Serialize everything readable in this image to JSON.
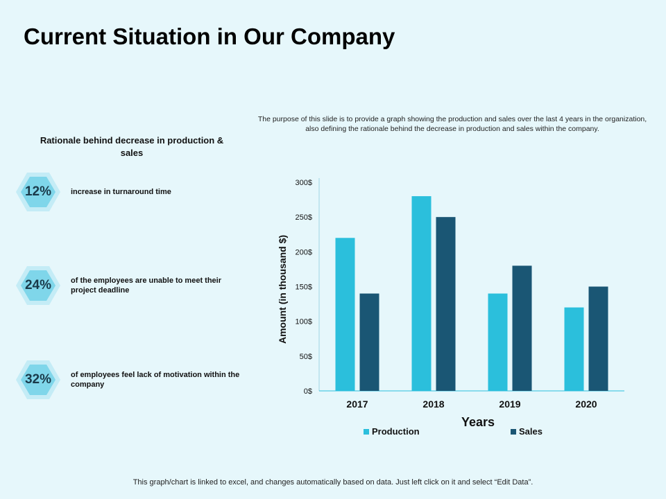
{
  "title": "Current Situation in Our Company",
  "description": "The purpose of this slide is to provide a graph showing the production and sales over the last 4 years in the organization, also defining the rationale behind the decrease in production and sales within the company.",
  "rationale": {
    "heading": "Rationale behind decrease in production & sales",
    "items": [
      {
        "value": "12%",
        "text": "increase in turnaround time"
      },
      {
        "value": "24%",
        "text": "of the employees are unable to meet their project deadline"
      },
      {
        "value": "32%",
        "text": "of employees feel lack of motivation within the company"
      }
    ]
  },
  "footer": "This graph/chart is linked to excel, and changes automatically based on data. Just left click on it and select “Edit Data”.",
  "colors": {
    "production": "#2bbfdc",
    "sales": "#1a5674",
    "hex_outer": "#c4ecf6",
    "hex_inner": "#7fd6ea",
    "background": "#e6f7fb"
  },
  "chart_data": {
    "type": "bar",
    "categories": [
      "2017",
      "2018",
      "2019",
      "2020"
    ],
    "series": [
      {
        "name": "Production",
        "values": [
          220,
          280,
          140,
          120
        ]
      },
      {
        "name": "Sales",
        "values": [
          140,
          250,
          180,
          150
        ]
      }
    ],
    "yticks": [
      "0$",
      "50$",
      "100$",
      "150$",
      "200$",
      "250$",
      "300$"
    ],
    "ylim": [
      0,
      300
    ],
    "xlabel": "Years",
    "ylabel": "Amount (in thousand $)",
    "grid": false,
    "legend": "bottom"
  }
}
